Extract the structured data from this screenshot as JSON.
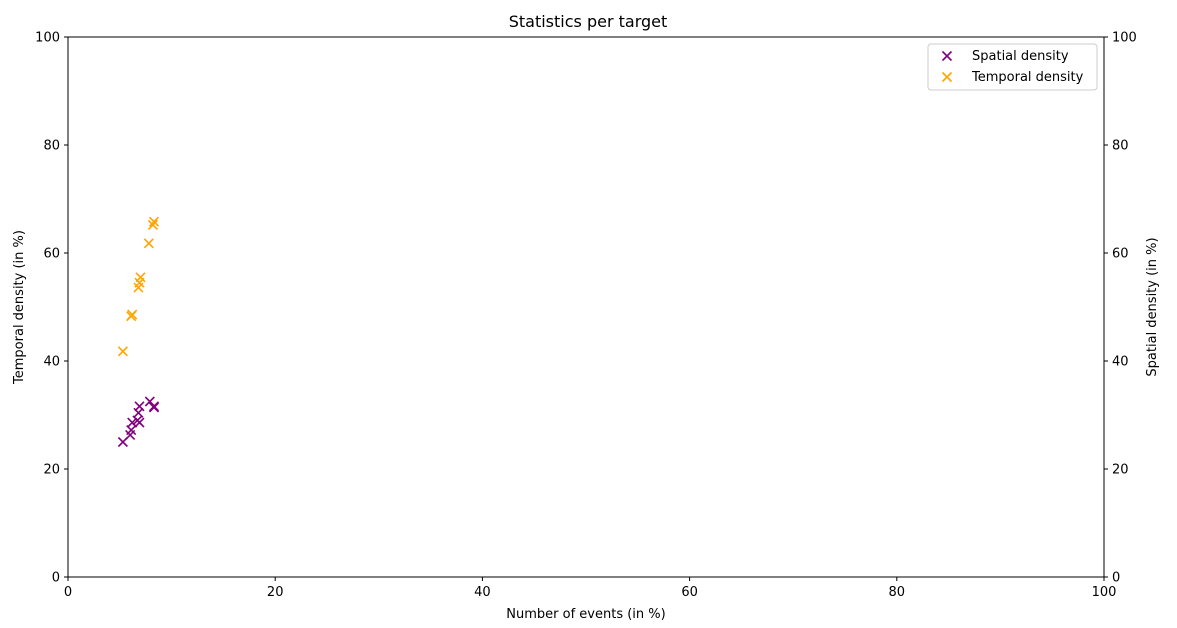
{
  "chart_data": {
    "type": "scatter",
    "title": "Statistics per target",
    "xlabel": "Number of events (in %)",
    "ylabel": "Temporal density (in %)",
    "y2label": "Spatial density (in %)",
    "xlim": [
      0,
      100
    ],
    "ylim": [
      0,
      100
    ],
    "y2lim": [
      0,
      100
    ],
    "xticks": [
      "0",
      "20",
      "40",
      "60",
      "80",
      "100"
    ],
    "yticks": [
      "0",
      "20",
      "40",
      "60",
      "80",
      "100"
    ],
    "y2ticks": [
      "0",
      "20",
      "40",
      "60",
      "80",
      "100"
    ],
    "grid": false,
    "legend": "top-right",
    "marker": "x",
    "series": [
      {
        "name": "Spatial density",
        "color": "#800080",
        "axis": "right",
        "points": [
          [
            5.3,
            25.0
          ],
          [
            6.0,
            26.3
          ],
          [
            6.1,
            27.2
          ],
          [
            6.2,
            28.6
          ],
          [
            6.7,
            29.0
          ],
          [
            6.9,
            28.6
          ],
          [
            6.8,
            30.4
          ],
          [
            6.9,
            31.6
          ],
          [
            7.9,
            32.5
          ],
          [
            8.3,
            31.6
          ],
          [
            8.3,
            31.4
          ]
        ]
      },
      {
        "name": "Temporal density",
        "color": "#FFA500",
        "axis": "left",
        "points": [
          [
            5.3,
            41.8
          ],
          [
            6.1,
            48.3
          ],
          [
            6.2,
            48.6
          ],
          [
            6.8,
            53.6
          ],
          [
            6.9,
            54.5
          ],
          [
            7.0,
            55.5
          ],
          [
            7.8,
            61.8
          ],
          [
            8.2,
            65.2
          ],
          [
            8.3,
            65.8
          ]
        ]
      }
    ]
  }
}
